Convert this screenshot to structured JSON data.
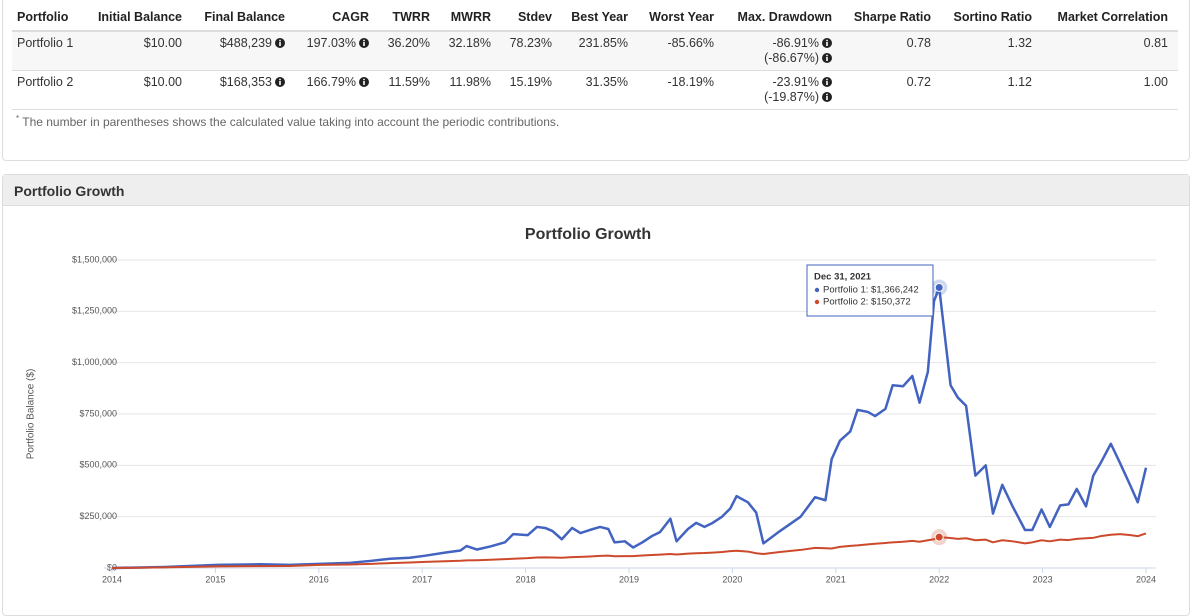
{
  "table": {
    "headers": [
      "Portfolio",
      "Initial Balance",
      "Final Balance",
      "CAGR",
      "TWRR",
      "MWRR",
      "Stdev",
      "Best Year",
      "Worst Year",
      "Max. Drawdown",
      "Sharpe Ratio",
      "Sortino Ratio",
      "Market Correlation"
    ],
    "rows": [
      [
        "Portfolio 1",
        "$10.00",
        "$488,239",
        "197.03%",
        "36.20%",
        "32.18%",
        "78.23%",
        "231.85%",
        "-85.66%",
        [
          "-86.91%",
          "(-86.67%)"
        ],
        "0.78",
        "1.32",
        "0.81"
      ],
      [
        "Portfolio 2",
        "$10.00",
        "$168,353",
        "166.79%",
        "11.59%",
        "11.98%",
        "15.19%",
        "31.35%",
        "-18.19%",
        [
          "-23.91%",
          "(-19.87%)"
        ],
        "0.72",
        "1.12",
        "1.00"
      ]
    ]
  },
  "footnote": {
    "marker": "*",
    "text": "The number in parentheses shows the calculated value taking into account the periodic contributions."
  },
  "section_title": "Portfolio Growth",
  "chart_data": {
    "type": "line",
    "title": "Portfolio Growth",
    "y_label": "Portfolio Balance ($)",
    "x": [
      2014.0,
      2014.51,
      2015.02,
      2015.43,
      2015.72,
      2016.01,
      2016.3,
      2016.51,
      2016.69,
      2016.88,
      2017.03,
      2017.22,
      2017.37,
      2017.43,
      2017.53,
      2017.66,
      2017.8,
      2017.88,
      2018.02,
      2018.11,
      2018.19,
      2018.26,
      2018.35,
      2018.45,
      2018.53,
      2018.62,
      2018.72,
      2018.8,
      2018.86,
      2018.96,
      2019.04,
      2019.13,
      2019.22,
      2019.3,
      2019.4,
      2019.46,
      2019.57,
      2019.65,
      2019.73,
      2019.81,
      2019.9,
      2019.98,
      2020.04,
      2020.15,
      2020.23,
      2020.3,
      2020.46,
      2020.66,
      2020.8,
      2020.9,
      2020.96,
      2021.04,
      2021.14,
      2021.21,
      2021.31,
      2021.38,
      2021.48,
      2021.55,
      2021.65,
      2021.74,
      2021.81,
      2021.89,
      2021.95,
      2022.0,
      2022.11,
      2022.18,
      2022.26,
      2022.35,
      2022.45,
      2022.52,
      2022.61,
      2022.71,
      2022.83,
      2022.9,
      2022.99,
      2023.07,
      2023.17,
      2023.25,
      2023.33,
      2023.42,
      2023.49,
      2023.56,
      2023.66,
      2023.75,
      2023.85,
      2023.92,
      2024.0
    ],
    "series": [
      {
        "name": "Portfolio 1",
        "color": "#4363c0",
        "values": [
          10,
          5000,
          15000,
          18000,
          15000,
          20000,
          25000,
          35000,
          45000,
          50000,
          60000,
          75000,
          85000,
          107000,
          90000,
          105000,
          125000,
          165000,
          160000,
          200000,
          195000,
          180000,
          140000,
          195000,
          170000,
          185000,
          200000,
          190000,
          125000,
          130000,
          100000,
          125000,
          155000,
          175000,
          240000,
          130000,
          190000,
          220000,
          200000,
          220000,
          250000,
          290000,
          350000,
          320000,
          270000,
          120000,
          180000,
          250000,
          345000,
          330000,
          530000,
          620000,
          665000,
          770000,
          760000,
          740000,
          775000,
          890000,
          885000,
          935000,
          805000,
          955000,
          1300000,
          1366242,
          890000,
          830000,
          790000,
          450000,
          500000,
          265000,
          405000,
          300000,
          185000,
          185000,
          285000,
          200000,
          305000,
          310000,
          385000,
          300000,
          450000,
          510000,
          605000,
          510000,
          400000,
          320000,
          488239
        ]
      },
      {
        "name": "Portfolio 2",
        "color": "#cc4a2b",
        "values": [
          10,
          3000,
          8000,
          9000,
          10000,
          15000,
          17000,
          20000,
          24000,
          27000,
          30000,
          33000,
          35000,
          37000,
          38000,
          40000,
          43000,
          45000,
          48000,
          51000,
          52000,
          51000,
          50000,
          53000,
          54000,
          56000,
          59000,
          60000,
          57000,
          58000,
          58000,
          61000,
          63000,
          65000,
          68000,
          66000,
          70000,
          72000,
          73000,
          75000,
          78000,
          82000,
          84000,
          80000,
          72000,
          68000,
          78000,
          88000,
          98000,
          96000,
          95000,
          103000,
          108000,
          110000,
          115000,
          118000,
          122000,
          125000,
          128000,
          132000,
          128000,
          135000,
          140000,
          150372,
          146000,
          142000,
          145000,
          135000,
          138000,
          125000,
          135000,
          130000,
          120000,
          125000,
          135000,
          130000,
          138000,
          136000,
          142000,
          145000,
          147000,
          155000,
          162000,
          165000,
          160000,
          155000,
          168353
        ]
      }
    ],
    "xlim": [
      2014,
      2024
    ],
    "xticks": [
      2014,
      2015,
      2016,
      2017,
      2018,
      2019,
      2020,
      2021,
      2022,
      2023,
      2024
    ],
    "ylim": [
      0,
      1500000
    ],
    "yticks": [
      {
        "value": 0,
        "label": "$0"
      },
      {
        "value": 250000,
        "label": "$250,000"
      },
      {
        "value": 500000,
        "label": "$500,000"
      },
      {
        "value": 750000,
        "label": "$750,000"
      },
      {
        "value": 1000000,
        "label": "$1,000,000"
      },
      {
        "value": 1250000,
        "label": "$1,250,000"
      },
      {
        "value": 1500000,
        "label": "$1,500,000"
      }
    ],
    "grid": true,
    "tooltip": {
      "title": "Dec 31, 2021",
      "lines": [
        "Portfolio 1: $1,366,242",
        "Portfolio 2: $150,372"
      ]
    }
  }
}
